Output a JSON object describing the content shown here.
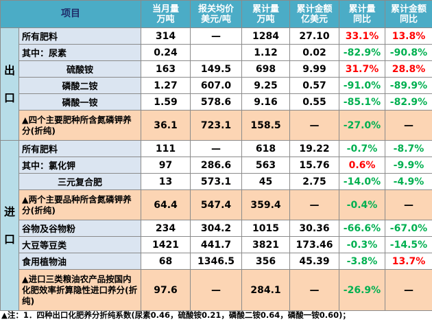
{
  "headers": {
    "item": "项目",
    "month": [
      "当月量",
      "万吨"
    ],
    "price": [
      "报关均价",
      "美元/吨"
    ],
    "cum": [
      "累计量",
      "万吨"
    ],
    "amount": [
      "累计金额",
      "亿美元"
    ],
    "cum_yoy": [
      "累计量",
      "同比"
    ],
    "amount_yoy": [
      "累计金额",
      "同比"
    ]
  },
  "sections": {
    "export": [
      "出",
      "口"
    ],
    "import": [
      "进",
      "口"
    ]
  },
  "export_rows": [
    {
      "name": "所有肥料",
      "month": "314",
      "price": "—",
      "cum": "1284",
      "amount": "27.10",
      "cum_yoy": "33.1%",
      "amount_yoy": "13.8%"
    },
    {
      "name": "其中：尿素",
      "month": "0.24",
      "price": "",
      "cum": "1.12",
      "amount": "0.02",
      "cum_yoy": "-82.9%",
      "amount_yoy": "-90.8%"
    },
    {
      "name": "硫酸铵",
      "month": "163",
      "price": "149.5",
      "cum": "698",
      "amount": "9.99",
      "cum_yoy": "31.7%",
      "amount_yoy": "28.8%"
    },
    {
      "name": "磷酸二铵",
      "month": "1.27",
      "price": "607.0",
      "cum": "9.25",
      "amount": "0.57",
      "cum_yoy": "-91.0%",
      "amount_yoy": "-89.9%"
    },
    {
      "name": "磷酸一铵",
      "month": "1.59",
      "price": "578.6",
      "cum": "9.16",
      "amount": "0.55",
      "cum_yoy": "-85.1%",
      "amount_yoy": "-82.9%"
    },
    {
      "name": "▲四个主要肥种所含氮磷钾养分(折纯)",
      "month": "36.1",
      "price": "723.1",
      "cum": "158.5",
      "amount": "—",
      "cum_yoy": "-27.0%",
      "amount_yoy": "—"
    }
  ],
  "import_rows": [
    {
      "name": "所有肥料",
      "month": "111",
      "price": "—",
      "cum": "618",
      "amount": "19.22",
      "cum_yoy": "-0.7%",
      "amount_yoy": "-8.7%"
    },
    {
      "name": "其中：氯化钾",
      "month": "97",
      "price": "286.6",
      "cum": "563",
      "amount": "15.76",
      "cum_yoy": "0.6%",
      "amount_yoy": "-9.9%"
    },
    {
      "name": "三元复合肥",
      "month": "13",
      "price": "573.1",
      "cum": "45",
      "amount": "2.75",
      "cum_yoy": "-14.0%",
      "amount_yoy": "-4.9%"
    },
    {
      "name": "▲两个主要品种所含氮磷钾养分(折纯)",
      "month": "64.4",
      "price": "547.4",
      "cum": "359.4",
      "amount": "—",
      "cum_yoy": "-0.4%",
      "amount_yoy": "—"
    },
    {
      "name": "谷物及谷物粉",
      "month": "234",
      "price": "304.2",
      "cum": "1015",
      "amount": "30.36",
      "cum_yoy": "-66.6%",
      "amount_yoy": "-67.0%"
    },
    {
      "name": "大豆等豆类",
      "month": "1421",
      "price": "441.7",
      "cum": "3821",
      "amount": "173.46",
      "cum_yoy": "-0.3%",
      "amount_yoy": "-14.5%"
    },
    {
      "name": "食用植物油",
      "month": "68",
      "price": "1346.5",
      "cum": "356",
      "amount": "45.39",
      "cum_yoy": "-3.8%",
      "amount_yoy": "13.7%"
    },
    {
      "name": "▲进口三类粮油农产品按国内化肥效率折算隐性进口养分(折纯)",
      "month": "97.6",
      "price": "—",
      "cum": "284.1",
      "amount": "—",
      "cum_yoy": "-26.9%",
      "amount_yoy": "—"
    }
  ],
  "colors": {
    "positive": "#ff0000",
    "negative": "#00b050",
    "header": "#4bacc6",
    "highlight": "#fcd5b4",
    "label": "#dbe5f1"
  },
  "notes": "▲注：1．四种出口化肥养分折纯系数(尿素0.46，硫酸铵0.21，磷酸二铵0.64，磷酸一铵0.60)；"
}
